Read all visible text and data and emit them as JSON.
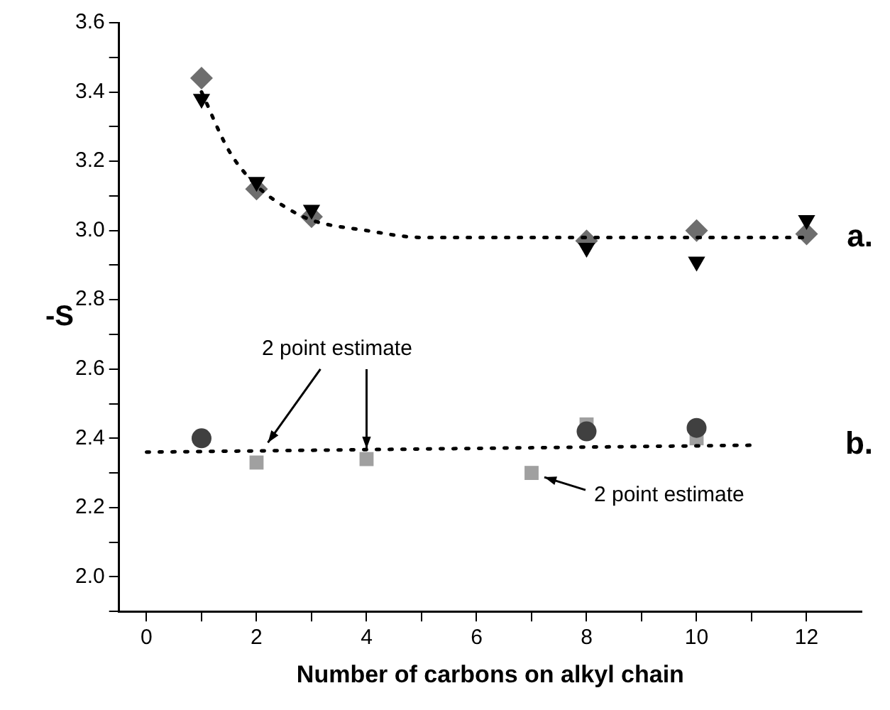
{
  "chart_data": {
    "type": "scatter",
    "xlabel": "Number of carbons on alkyl chain",
    "ylabel": "-S",
    "xlim": [
      -0.5,
      13
    ],
    "ylim": [
      1.9,
      3.6
    ],
    "xticks": [
      0,
      {
        "value": 1,
        "label": null
      },
      2,
      {
        "value": 3,
        "label": null
      },
      4,
      {
        "value": 5,
        "label": null
      },
      6,
      {
        "value": 7,
        "label": null
      },
      8,
      {
        "value": 9,
        "label": null
      },
      10,
      {
        "value": 11,
        "label": null
      },
      12
    ],
    "yticks": [
      {
        "value": 1.9,
        "label": null
      },
      {
        "value": 2.0,
        "label": "2.0"
      },
      {
        "value": 2.1,
        "label": null
      },
      2.2,
      {
        "value": 2.3,
        "label": null
      },
      2.4,
      {
        "value": 2.5,
        "label": null
      },
      2.6,
      {
        "value": 2.7,
        "label": null
      },
      2.8,
      {
        "value": 2.9,
        "label": null
      },
      {
        "value": 3.0,
        "label": "3.0"
      },
      {
        "value": 3.1,
        "label": null
      },
      3.2,
      {
        "value": 3.3,
        "label": null
      },
      3.4,
      {
        "value": 3.5,
        "label": null
      },
      3.6
    ],
    "grid": false,
    "legend": false,
    "series": [
      {
        "type": "line",
        "color": "#000000",
        "marker": "none",
        "line_style": "dotted",
        "x": [
          1,
          1.5,
          2,
          2.5,
          3,
          4,
          5,
          6,
          8,
          10,
          12
        ],
        "values": [
          3.4,
          3.23,
          3.13,
          3.07,
          3.03,
          3.0,
          2.98,
          2.98,
          2.98,
          2.98,
          2.98
        ]
      },
      {
        "type": "line",
        "color": "#000000",
        "marker": "none",
        "line_style": "dotted",
        "x": [
          0,
          11
        ],
        "values": [
          2.36,
          2.38
        ]
      },
      {
        "color": "#000000",
        "marker": "triangle",
        "x": [
          1,
          2,
          3,
          8,
          10,
          12
        ],
        "values": [
          3.38,
          3.14,
          3.06,
          2.95,
          2.91,
          3.03
        ]
      },
      {
        "color": "#6e6e6e",
        "marker": "diamond",
        "x": [
          1,
          2,
          3,
          8,
          10,
          12
        ],
        "values": [
          3.44,
          3.12,
          3.04,
          2.97,
          3.0,
          2.99
        ]
      },
      {
        "color": "#404040",
        "marker": "circle",
        "x": [
          1,
          8,
          10
        ],
        "values": [
          2.4,
          2.42,
          2.43
        ]
      },
      {
        "color": "#a0a0a0",
        "marker": "square",
        "x": [
          2,
          4,
          7,
          8,
          10
        ],
        "values": [
          2.33,
          2.34,
          2.3,
          2.44,
          2.4
        ]
      }
    ],
    "annotations": [
      "a.",
      "b.",
      {
        "text": "2 point estimate",
        "x": 4,
        "y": 2.37
      },
      {
        "text": "2 point estimate",
        "x": 7,
        "y": 2.3
      }
    ]
  }
}
